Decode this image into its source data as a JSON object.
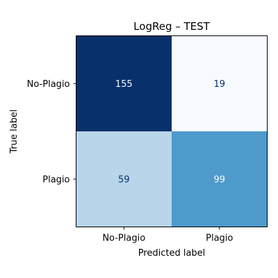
{
  "chart_data": {
    "type": "heatmap",
    "title": "LogReg – TEST",
    "xlabel": "Predicted label",
    "ylabel": "True label",
    "x_categories": [
      "No-Plagio",
      "Plagio"
    ],
    "y_categories": [
      "No-Plagio",
      "Plagio"
    ],
    "values": [
      [
        155,
        19
      ],
      [
        59,
        99
      ]
    ],
    "colormap": "Blues",
    "value_range": [
      19,
      155
    ],
    "colors": {
      "cell_155": "#08306b",
      "cell_19": "#f7fbff",
      "cell_59": "#b8d5ea",
      "cell_99": "#4a98c9",
      "text_on_dark": "#f7fbff",
      "text_on_light": "#08306b"
    }
  }
}
